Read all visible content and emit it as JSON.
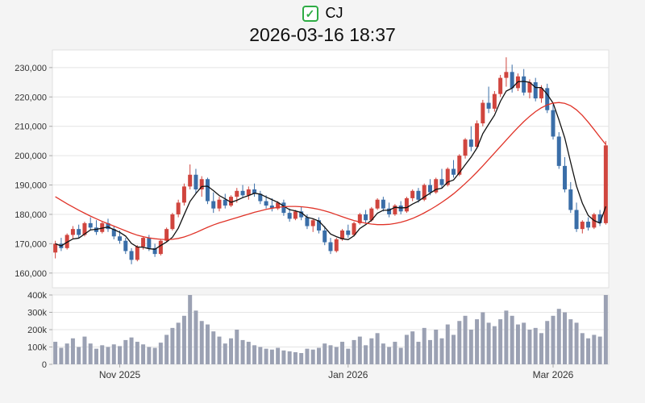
{
  "header": {
    "symbol": "CJ",
    "timestamp": "2026-03-16 18:37",
    "check_glyph": "✓",
    "checkbox_color": "#2eac44"
  },
  "chart_data": {
    "type": "candlestick",
    "title": "CJ",
    "subtitle": "2026-03-16 18:37",
    "grid": true,
    "legend_position": "none",
    "price_axis": {
      "min": 155000,
      "max": 236000,
      "ticks": [
        160000,
        170000,
        180000,
        190000,
        200000,
        210000,
        220000,
        230000
      ],
      "tick_labels": [
        "160,000",
        "170,000",
        "180,000",
        "190,000",
        "200,000",
        "210,000",
        "220,000",
        "230,000"
      ]
    },
    "volume_axis": {
      "min": 0,
      "max": 400000,
      "ticks": [
        0,
        100000,
        200000,
        300000,
        400000
      ],
      "tick_labels": [
        "0",
        "100k",
        "200k",
        "300k",
        "400k"
      ]
    },
    "x_axis": {
      "ticks": [
        {
          "index": 11,
          "label": "Nov 2025"
        },
        {
          "index": 50,
          "label": "Jan 2026"
        },
        {
          "index": 85,
          "label": "Mar 2026"
        }
      ]
    },
    "colors": {
      "up": "#d0453e",
      "down": "#3a6ea8",
      "ma_fast": "#111111",
      "ma_slow": "#e03328",
      "volume": "#9ba1b3",
      "grid": "#e4e4e4",
      "axis": "#aaaaaa"
    },
    "candles": [
      [
        167000,
        171000,
        165000,
        170000,
        130000
      ],
      [
        170000,
        172000,
        167500,
        168500,
        95000
      ],
      [
        168500,
        173500,
        168000,
        173000,
        120000
      ],
      [
        173000,
        176000,
        171500,
        175000,
        150000
      ],
      [
        175000,
        176500,
        172000,
        173000,
        100000
      ],
      [
        173000,
        177500,
        172500,
        177000,
        160000
      ],
      [
        177000,
        179000,
        174500,
        175500,
        120000
      ],
      [
        175500,
        178000,
        173000,
        174000,
        90000
      ],
      [
        174000,
        177500,
        173500,
        177000,
        110000
      ],
      [
        177000,
        178500,
        174000,
        175000,
        100000
      ],
      [
        175000,
        176000,
        171500,
        172500,
        115000
      ],
      [
        172500,
        174500,
        170000,
        171000,
        105000
      ],
      [
        171000,
        172000,
        166500,
        167500,
        140000
      ],
      [
        167500,
        168500,
        163000,
        164500,
        155000
      ],
      [
        164500,
        169500,
        164000,
        169000,
        130000
      ],
      [
        169000,
        172500,
        168000,
        172000,
        115000
      ],
      [
        172000,
        173000,
        167500,
        168500,
        100000
      ],
      [
        168500,
        170000,
        165500,
        166500,
        95000
      ],
      [
        166500,
        171500,
        166000,
        171000,
        125000
      ],
      [
        171000,
        175500,
        170500,
        175000,
        170000
      ],
      [
        175000,
        180500,
        174500,
        180000,
        210000
      ],
      [
        180000,
        185000,
        179000,
        184000,
        240000
      ],
      [
        184000,
        190500,
        183000,
        189500,
        280000
      ],
      [
        189500,
        197000,
        188500,
        193500,
        400000
      ],
      [
        193500,
        195500,
        187000,
        188500,
        310000
      ],
      [
        188500,
        193000,
        186000,
        192000,
        250000
      ],
      [
        192000,
        192500,
        183500,
        184500,
        230000
      ],
      [
        184500,
        187500,
        180500,
        182000,
        190000
      ],
      [
        182000,
        186000,
        181000,
        185000,
        160000
      ],
      [
        185000,
        187000,
        182000,
        183000,
        120000
      ],
      [
        183000,
        186500,
        182500,
        186000,
        150000
      ],
      [
        186000,
        189000,
        184000,
        188000,
        200000
      ],
      [
        188000,
        190000,
        185500,
        186500,
        140000
      ],
      [
        186500,
        189500,
        185000,
        188500,
        130000
      ],
      [
        188500,
        190500,
        186000,
        187000,
        110000
      ],
      [
        187000,
        188000,
        183500,
        184500,
        100000
      ],
      [
        184500,
        186500,
        182000,
        183000,
        90000
      ],
      [
        183000,
        185500,
        181000,
        182000,
        85000
      ],
      [
        182000,
        184500,
        181500,
        184000,
        95000
      ],
      [
        184000,
        185000,
        179500,
        180500,
        80000
      ],
      [
        180500,
        182000,
        177500,
        178500,
        75000
      ],
      [
        178500,
        181500,
        178000,
        181000,
        70000
      ],
      [
        181000,
        182500,
        178000,
        179000,
        65000
      ],
      [
        179000,
        180000,
        175000,
        176000,
        90000
      ],
      [
        176000,
        178500,
        174000,
        178000,
        85000
      ],
      [
        178000,
        179000,
        173500,
        174500,
        95000
      ],
      [
        174500,
        176000,
        169500,
        170500,
        120000
      ],
      [
        170500,
        172000,
        166500,
        167500,
        110000
      ],
      [
        167500,
        172000,
        167000,
        171500,
        100000
      ],
      [
        171500,
        175000,
        171000,
        174500,
        130000
      ],
      [
        174500,
        176500,
        172000,
        173000,
        90000
      ],
      [
        173000,
        177500,
        172500,
        177000,
        140000
      ],
      [
        177000,
        180500,
        176500,
        180000,
        160000
      ],
      [
        180000,
        181500,
        177000,
        178000,
        110000
      ],
      [
        178000,
        182500,
        177500,
        182000,
        150000
      ],
      [
        182000,
        185500,
        181500,
        185000,
        180000
      ],
      [
        185000,
        186000,
        181000,
        182000,
        120000
      ],
      [
        182000,
        184000,
        179000,
        180000,
        100000
      ],
      [
        180000,
        183500,
        179500,
        183000,
        130000
      ],
      [
        183000,
        184500,
        180000,
        181000,
        95000
      ],
      [
        181000,
        186000,
        180500,
        185500,
        170000
      ],
      [
        185500,
        188500,
        184500,
        188000,
        190000
      ],
      [
        188000,
        189000,
        184000,
        185000,
        130000
      ],
      [
        185000,
        190500,
        184500,
        190000,
        210000
      ],
      [
        190000,
        192000,
        186500,
        187500,
        140000
      ],
      [
        187500,
        192500,
        187000,
        192000,
        200000
      ],
      [
        192000,
        195500,
        189000,
        190000,
        150000
      ],
      [
        190000,
        196000,
        189500,
        195500,
        230000
      ],
      [
        195500,
        198500,
        192500,
        193500,
        170000
      ],
      [
        193500,
        200500,
        193000,
        200000,
        250000
      ],
      [
        200000,
        206000,
        199000,
        205500,
        280000
      ],
      [
        205500,
        210000,
        201500,
        203000,
        200000
      ],
      [
        203000,
        212000,
        202500,
        211000,
        260000
      ],
      [
        211000,
        219000,
        210000,
        218000,
        300000
      ],
      [
        218000,
        223500,
        214500,
        216000,
        240000
      ],
      [
        216000,
        222000,
        215000,
        221000,
        220000
      ],
      [
        221000,
        227500,
        220000,
        226500,
        260000
      ],
      [
        226500,
        233500,
        223500,
        228500,
        310000
      ],
      [
        228500,
        231000,
        221500,
        223000,
        280000
      ],
      [
        223000,
        228000,
        222000,
        227000,
        230000
      ],
      [
        227000,
        229500,
        220500,
        221500,
        240000
      ],
      [
        221500,
        226000,
        219500,
        225000,
        200000
      ],
      [
        225000,
        226500,
        218500,
        219500,
        210000
      ],
      [
        219500,
        224000,
        218000,
        223000,
        180000
      ],
      [
        223000,
        224500,
        214500,
        215500,
        250000
      ],
      [
        215500,
        217500,
        205500,
        206500,
        280000
      ],
      [
        206500,
        208000,
        195500,
        196500,
        320000
      ],
      [
        196500,
        199500,
        187500,
        188500,
        300000
      ],
      [
        188500,
        191000,
        180500,
        181500,
        260000
      ],
      [
        181500,
        184000,
        174000,
        175000,
        240000
      ],
      [
        175000,
        178000,
        173500,
        177500,
        180000
      ],
      [
        177500,
        179000,
        174500,
        175500,
        150000
      ],
      [
        175500,
        180500,
        175000,
        180000,
        170000
      ],
      [
        180000,
        181500,
        176000,
        177000,
        160000
      ],
      [
        177000,
        205000,
        176500,
        203500,
        400000
      ]
    ],
    "overlays": [
      {
        "name": "ma-fast",
        "kind": "sma",
        "window": 5,
        "color_key": "ma_fast"
      },
      {
        "name": "ma-slow",
        "kind": "values",
        "color_key": "ma_slow",
        "values": [
          186000,
          184800,
          183600,
          182500,
          181400,
          180400,
          179400,
          178500,
          177600,
          176800,
          176000,
          175200,
          174400,
          173600,
          172900,
          172400,
          172000,
          171700,
          171500,
          171400,
          171500,
          171800,
          172300,
          173000,
          173800,
          174700,
          175600,
          176400,
          177100,
          177700,
          178300,
          178900,
          179500,
          180100,
          180700,
          181200,
          181700,
          182100,
          182400,
          182600,
          182700,
          182700,
          182600,
          182400,
          182100,
          181700,
          181200,
          180600,
          179900,
          179200,
          178500,
          177900,
          177400,
          177000,
          176700,
          176500,
          176500,
          176600,
          176900,
          177300,
          177900,
          178600,
          179500,
          180500,
          181600,
          182800,
          184100,
          185500,
          187000,
          188700,
          190500,
          192400,
          194400,
          196500,
          198700,
          200900,
          203100,
          205300,
          207500,
          209600,
          211600,
          213400,
          215000,
          216300,
          217300,
          217900,
          218100,
          217800,
          217000,
          215600,
          213700,
          211400,
          208900,
          206300,
          203800
        ]
      }
    ]
  }
}
